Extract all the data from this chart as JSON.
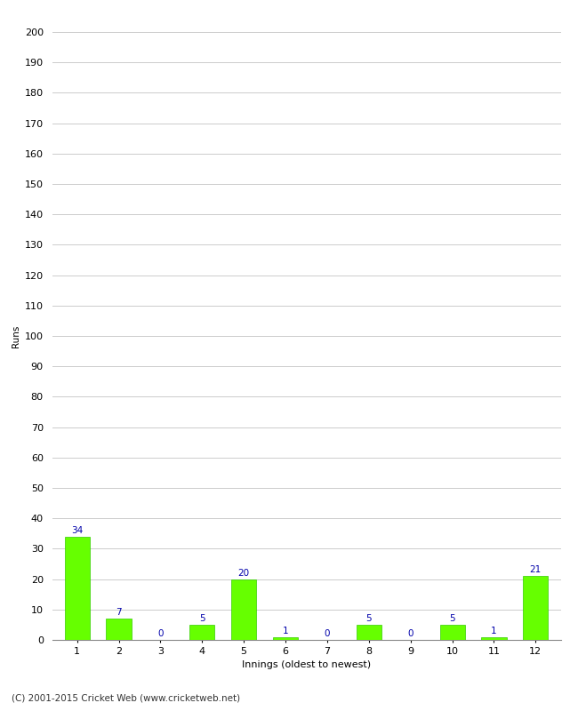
{
  "xlabel": "Innings (oldest to newest)",
  "ylabel": "Runs",
  "categories": [
    1,
    2,
    3,
    4,
    5,
    6,
    7,
    8,
    9,
    10,
    11,
    12
  ],
  "values": [
    34,
    7,
    0,
    5,
    20,
    1,
    0,
    5,
    0,
    5,
    1,
    21
  ],
  "bar_color": "#66ff00",
  "bar_edge_color": "#33cc00",
  "label_color": "#0000aa",
  "ylim": [
    0,
    200
  ],
  "yticks": [
    0,
    10,
    20,
    30,
    40,
    50,
    60,
    70,
    80,
    90,
    100,
    110,
    120,
    130,
    140,
    150,
    160,
    170,
    180,
    190,
    200
  ],
  "grid_color": "#cccccc",
  "background_color": "#ffffff",
  "footer_text": "(C) 2001-2015 Cricket Web (www.cricketweb.net)",
  "label_fontsize": 7.5,
  "axis_tick_fontsize": 8,
  "xlabel_fontsize": 8,
  "ylabel_fontsize": 7.5,
  "footer_fontsize": 7.5
}
